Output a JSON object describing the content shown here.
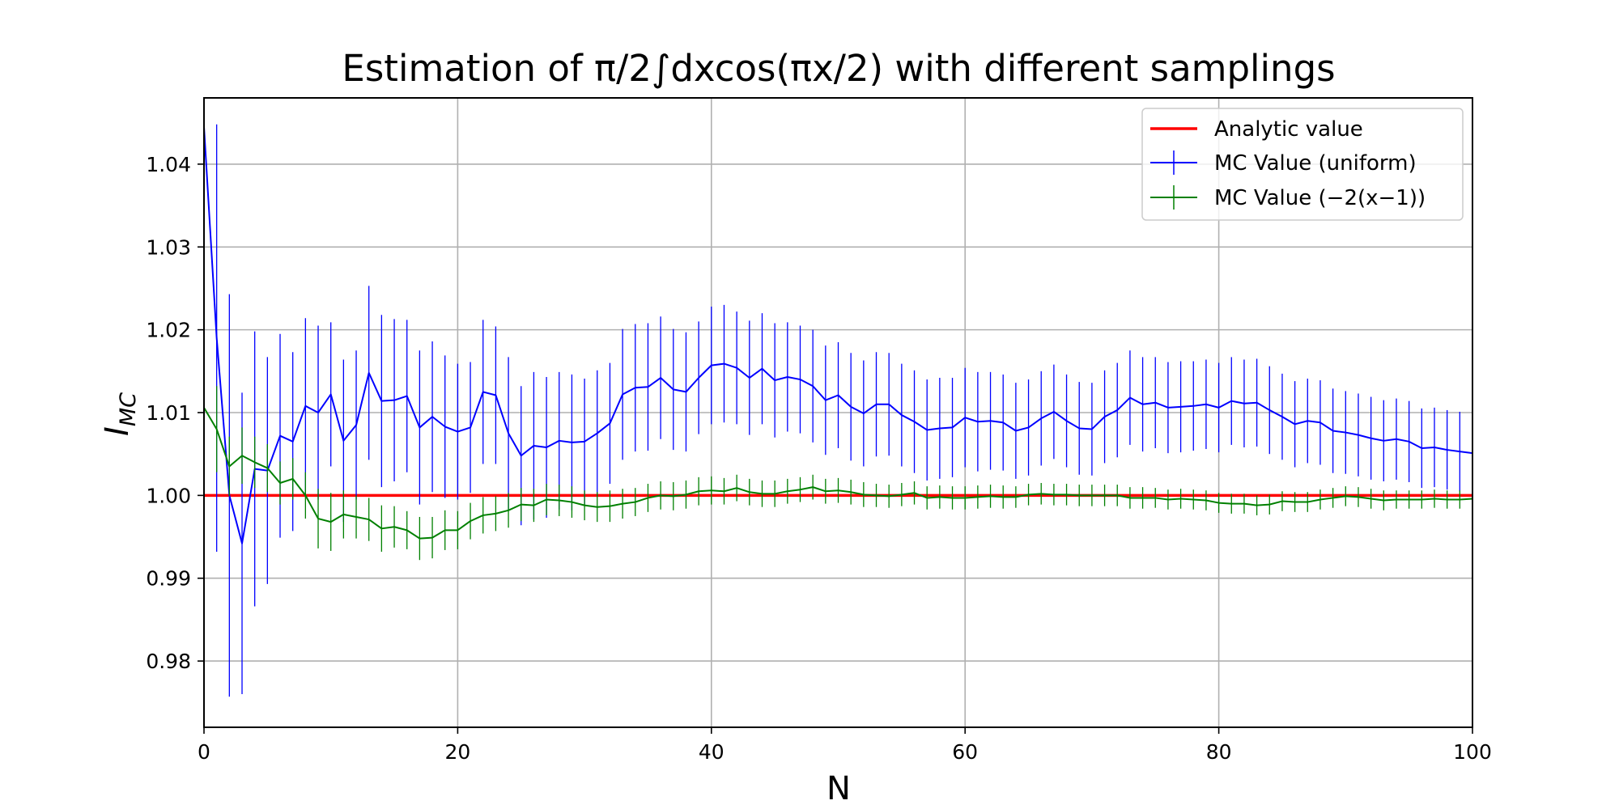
{
  "chart_data": {
    "type": "line",
    "title": "Estimation of π/2∫dxcos(πx/2) with different samplings",
    "xlabel": "N",
    "ylabel": "I",
    "ylabel_sub": "MC",
    "xlim": [
      0,
      100
    ],
    "ylim": [
      0.972,
      1.048
    ],
    "xticks": [
      0,
      20,
      40,
      60,
      80,
      100
    ],
    "xtick_labels": [
      "0",
      "20",
      "40",
      "60",
      "80",
      "100"
    ],
    "yticks": [
      0.98,
      0.99,
      1.0,
      1.01,
      1.02,
      1.03,
      1.04
    ],
    "ytick_labels": [
      "0.98",
      "0.99",
      "1.00",
      "1.01",
      "1.02",
      "1.03",
      "1.04"
    ],
    "grid": true,
    "legend_position": "top-right",
    "analytic": {
      "name": "Analytic value",
      "value": 1.0,
      "color": "#ff0000"
    },
    "series": [
      {
        "name": "MC Value (uniform)",
        "color": "#0000ff",
        "values": [
          1.0445,
          1.019,
          1.0,
          0.9942,
          1.0032,
          1.003,
          1.0072,
          1.0065,
          1.0108,
          1.01,
          1.0122,
          1.0066,
          1.0085,
          1.0148,
          1.0114,
          1.0115,
          1.012,
          1.0082,
          1.0095,
          1.0083,
          1.0077,
          1.0082,
          1.0125,
          1.0121,
          1.0075,
          1.0048,
          1.006,
          1.0058,
          1.0066,
          1.0064,
          1.0065,
          1.0075,
          1.0087,
          1.0122,
          1.013,
          1.0131,
          1.0142,
          1.0128,
          1.0125,
          1.0142,
          1.0157,
          1.0159,
          1.0154,
          1.0142,
          1.0153,
          1.0139,
          1.0143,
          1.014,
          1.0132,
          1.0115,
          1.0121,
          1.0107,
          1.0099,
          1.011,
          1.011,
          1.0097,
          1.0089,
          1.0079,
          1.0081,
          1.0082,
          1.0094,
          1.0089,
          1.009,
          1.0088,
          1.0078,
          1.0082,
          1.0093,
          1.0101,
          1.009,
          1.0081,
          1.008,
          1.0095,
          1.0103,
          1.0118,
          1.011,
          1.0112,
          1.0106,
          1.0107,
          1.0108,
          1.011,
          1.0106,
          1.0114,
          1.0111,
          1.0112,
          1.0103,
          1.0095,
          1.0086,
          1.009,
          1.0088,
          1.0078,
          1.0076,
          1.0073,
          1.0069,
          1.0066,
          1.0068,
          1.0065,
          1.0057,
          1.0058,
          1.0055,
          1.0053,
          1.0051
        ],
        "errors": [
          0.0,
          0.0258,
          0.0243,
          0.0182,
          0.0166,
          0.0137,
          0.0123,
          0.0108,
          0.0106,
          0.0105,
          0.0087,
          0.0098,
          0.009,
          0.0105,
          0.0104,
          0.0098,
          0.0092,
          0.0093,
          0.0091,
          0.0086,
          0.0082,
          0.0079,
          0.0087,
          0.0083,
          0.0092,
          0.0084,
          0.0089,
          0.0085,
          0.0083,
          0.0082,
          0.0076,
          0.0076,
          0.0073,
          0.0079,
          0.0077,
          0.0077,
          0.0074,
          0.0073,
          0.0072,
          0.0068,
          0.0071,
          0.0071,
          0.0068,
          0.0069,
          0.0067,
          0.0069,
          0.0066,
          0.0065,
          0.0068,
          0.0066,
          0.0064,
          0.0065,
          0.0064,
          0.0063,
          0.0062,
          0.0062,
          0.0062,
          0.0061,
          0.0061,
          0.006,
          0.006,
          0.006,
          0.0059,
          0.0058,
          0.0058,
          0.0058,
          0.0057,
          0.0057,
          0.0056,
          0.0056,
          0.0056,
          0.0056,
          0.0057,
          0.0057,
          0.0057,
          0.0055,
          0.0055,
          0.0055,
          0.0054,
          0.0054,
          0.0054,
          0.0053,
          0.0053,
          0.0053,
          0.0053,
          0.0052,
          0.0052,
          0.0051,
          0.0051,
          0.0051,
          0.005,
          0.005,
          0.005,
          0.0049,
          0.0049,
          0.0049,
          0.0048,
          0.0048,
          0.0048,
          0.0048,
          0.0048
        ]
      },
      {
        "name": "MC Value (−2(x−1))",
        "color": "#008000",
        "values": [
          1.0106,
          1.008,
          1.0035,
          1.0048,
          1.004,
          1.0033,
          1.0015,
          1.002,
          1.0,
          0.9972,
          0.9968,
          0.9977,
          0.9974,
          0.9971,
          0.996,
          0.9962,
          0.9958,
          0.9948,
          0.9949,
          0.9958,
          0.9958,
          0.9969,
          0.9976,
          0.9978,
          0.9982,
          0.9989,
          0.9988,
          0.9995,
          0.9994,
          0.9992,
          0.9988,
          0.9986,
          0.9987,
          0.999,
          0.9992,
          0.9997,
          1.0,
          0.9999,
          1.0001,
          1.0005,
          1.0006,
          1.0005,
          1.0009,
          1.0004,
          1.0002,
          1.0002,
          1.0005,
          1.0007,
          1.001,
          1.0005,
          1.0006,
          1.0004,
          1.0001,
          1.0,
          0.9999,
          1.0001,
          1.0003,
          0.9997,
          0.9998,
          0.9997,
          0.9997,
          0.9998,
          0.9999,
          0.9998,
          0.9998,
          1.0001,
          1.0002,
          1.0001,
          1.0001,
          1.0,
          1.0,
          1.0,
          1.0,
          0.9997,
          0.9997,
          0.9997,
          0.9995,
          0.9996,
          0.9995,
          0.9994,
          0.9991,
          0.999,
          0.999,
          0.9988,
          0.9989,
          0.9993,
          0.9992,
          0.9992,
          0.9995,
          0.9997,
          0.9999,
          0.9998,
          0.9996,
          0.9994,
          0.9995,
          0.9995,
          0.9995,
          0.9996,
          0.9995,
          0.9995,
          0.9996
        ],
        "errors": [
          0.0,
          0.0052,
          0.0036,
          0.0034,
          0.0031,
          0.0029,
          0.0026,
          0.0025,
          0.0028,
          0.0036,
          0.0035,
          0.0029,
          0.0026,
          0.0026,
          0.0028,
          0.0025,
          0.0023,
          0.0026,
          0.0025,
          0.0024,
          0.0023,
          0.0022,
          0.0022,
          0.0021,
          0.0021,
          0.002,
          0.002,
          0.0019,
          0.0019,
          0.0019,
          0.0018,
          0.0018,
          0.0019,
          0.0018,
          0.0017,
          0.0017,
          0.0017,
          0.0017,
          0.0017,
          0.0017,
          0.0017,
          0.0016,
          0.0016,
          0.0016,
          0.0016,
          0.0016,
          0.0015,
          0.0015,
          0.0015,
          0.0015,
          0.0015,
          0.0015,
          0.0015,
          0.0014,
          0.0014,
          0.0014,
          0.0014,
          0.0014,
          0.0014,
          0.0014,
          0.0014,
          0.0014,
          0.0014,
          0.0014,
          0.0013,
          0.0013,
          0.0013,
          0.0013,
          0.0013,
          0.0013,
          0.0013,
          0.0013,
          0.0013,
          0.0013,
          0.0013,
          0.0012,
          0.0012,
          0.0012,
          0.0012,
          0.0012,
          0.0012,
          0.0012,
          0.0012,
          0.0012,
          0.0012,
          0.0012,
          0.0012,
          0.0012,
          0.0012,
          0.0012,
          0.0012,
          0.0012,
          0.0012,
          0.0012,
          0.0011,
          0.0011,
          0.0011,
          0.0011,
          0.0011,
          0.0011,
          0.0011
        ]
      }
    ]
  }
}
